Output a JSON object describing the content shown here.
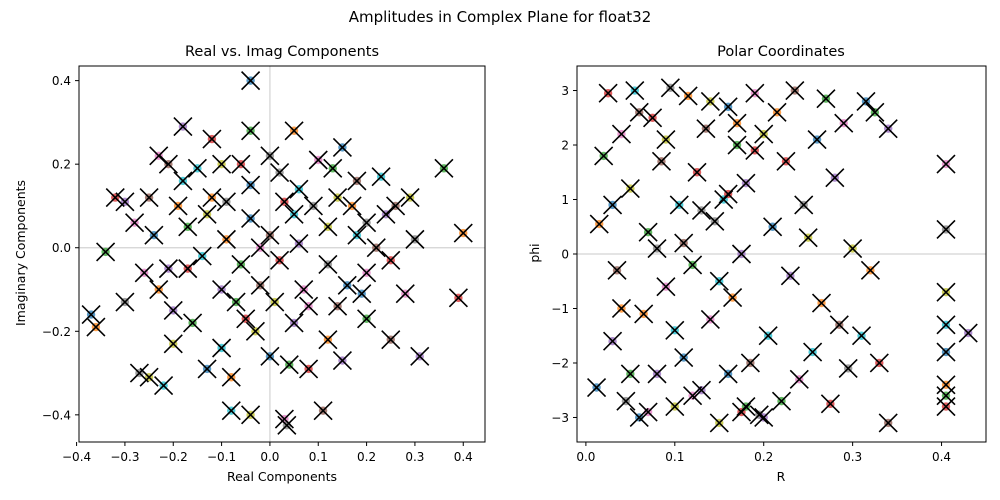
{
  "figure": {
    "title": "Amplitudes in Complex Plane for float32"
  },
  "colors": {
    "palette": [
      "#1f77b4",
      "#ff7f0e",
      "#2ca02c",
      "#d62728",
      "#9467bd",
      "#8c564b",
      "#e377c2",
      "#7f7f7f",
      "#bcbd22",
      "#17becf"
    ],
    "marker_x": "#000000",
    "zero_line": "#d3d3d3"
  },
  "chart_data": [
    {
      "type": "scatter",
      "title": "Real vs. Imag Components",
      "xlabel": "Real Components",
      "ylabel": "Imaginary Components",
      "xlim": [
        -0.395,
        0.445
      ],
      "ylim": [
        -0.465,
        0.435
      ],
      "xticks": [
        -0.4,
        -0.3,
        -0.2,
        -0.1,
        0.0,
        0.1,
        0.2,
        0.3,
        0.4
      ],
      "yticks": [
        -0.4,
        -0.2,
        0.0,
        0.2,
        0.4
      ],
      "xtick_labels": [
        "−0.4",
        "−0.3",
        "−0.2",
        "−0.1",
        "0.0",
        "0.1",
        "0.2",
        "0.3",
        "0.4"
      ],
      "ytick_labels": [
        "−0.4",
        "−0.2",
        "0.0",
        "0.2",
        "0.4"
      ],
      "reference_lines": {
        "x": 0,
        "y": 0
      },
      "markers": [
        "colored dot",
        "black x"
      ],
      "points": [
        [
          -0.04,
          0.4
        ],
        [
          0.4,
          0.035
        ],
        [
          0.36,
          0.19
        ],
        [
          0.39,
          -0.12
        ],
        [
          0.31,
          -0.26
        ],
        [
          0.11,
          -0.39
        ],
        [
          0.03,
          -0.41
        ],
        [
          0.035,
          -0.425
        ],
        [
          -0.04,
          -0.4
        ],
        [
          -0.08,
          -0.39
        ],
        [
          -0.37,
          -0.16
        ],
        [
          -0.36,
          -0.19
        ],
        [
          -0.34,
          -0.01
        ],
        [
          -0.32,
          0.12
        ],
        [
          -0.3,
          0.11
        ],
        [
          -0.25,
          0.12
        ],
        [
          -0.23,
          0.22
        ],
        [
          -0.27,
          -0.3
        ],
        [
          -0.25,
          -0.31
        ],
        [
          -0.22,
          -0.33
        ],
        [
          -0.13,
          -0.29
        ],
        [
          -0.08,
          -0.31
        ],
        [
          0.04,
          -0.28
        ],
        [
          0.08,
          -0.29
        ],
        [
          0.15,
          -0.27
        ],
        [
          0.25,
          -0.22
        ],
        [
          0.28,
          -0.11
        ],
        [
          0.3,
          0.02
        ],
        [
          0.29,
          0.12
        ],
        [
          0.23,
          0.17
        ],
        [
          0.15,
          0.24
        ],
        [
          0.05,
          0.28
        ],
        [
          -0.04,
          0.28
        ],
        [
          -0.12,
          0.26
        ],
        [
          -0.18,
          0.29
        ],
        [
          -0.21,
          0.2
        ],
        [
          -0.28,
          0.06
        ],
        [
          -0.3,
          -0.13
        ],
        [
          -0.2,
          -0.23
        ],
        [
          -0.1,
          -0.24
        ],
        [
          0.0,
          -0.26
        ],
        [
          0.12,
          -0.22
        ],
        [
          0.2,
          -0.17
        ],
        [
          0.25,
          -0.03
        ],
        [
          0.24,
          0.08
        ],
        [
          0.18,
          0.16
        ],
        [
          0.1,
          0.21
        ],
        [
          0.0,
          0.22
        ],
        [
          -0.1,
          0.2
        ],
        [
          -0.18,
          0.16
        ],
        [
          -0.24,
          0.03
        ],
        [
          -0.23,
          -0.1
        ],
        [
          -0.16,
          -0.18
        ],
        [
          -0.05,
          -0.17
        ],
        [
          0.05,
          -0.18
        ],
        [
          0.14,
          -0.14
        ],
        [
          0.2,
          -0.06
        ],
        [
          0.2,
          0.06
        ],
        [
          0.14,
          0.12
        ],
        [
          0.06,
          0.14
        ],
        [
          -0.04,
          0.15
        ],
        [
          -0.12,
          0.12
        ],
        [
          -0.17,
          0.05
        ],
        [
          -0.17,
          -0.05
        ],
        [
          -0.1,
          -0.1
        ],
        [
          -0.02,
          -0.09
        ],
        [
          0.07,
          -0.1
        ],
        [
          0.12,
          -0.04
        ],
        [
          0.12,
          0.05
        ],
        [
          0.05,
          0.08
        ],
        [
          -0.04,
          0.07
        ],
        [
          -0.09,
          0.02
        ],
        [
          -0.06,
          -0.04
        ],
        [
          0.02,
          -0.03
        ],
        [
          0.06,
          0.01
        ],
        [
          0.0,
          0.03
        ],
        [
          -0.02,
          0.0
        ],
        [
          0.09,
          0.1
        ],
        [
          -0.13,
          0.08
        ],
        [
          -0.14,
          -0.02
        ],
        [
          0.16,
          -0.09
        ],
        [
          0.17,
          0.1
        ],
        [
          -0.07,
          -0.13
        ],
        [
          0.03,
          0.11
        ],
        [
          -0.21,
          -0.05
        ],
        [
          0.22,
          0.0
        ],
        [
          0.08,
          -0.14
        ],
        [
          -0.09,
          0.11
        ],
        [
          0.01,
          -0.13
        ],
        [
          -0.15,
          0.19
        ],
        [
          0.19,
          -0.11
        ],
        [
          -0.19,
          0.1
        ],
        [
          0.13,
          0.19
        ],
        [
          -0.06,
          0.2
        ],
        [
          -0.2,
          -0.15
        ],
        [
          0.26,
          0.1
        ],
        [
          -0.26,
          -0.06
        ],
        [
          0.02,
          0.18
        ],
        [
          -0.03,
          -0.2
        ],
        [
          0.18,
          0.03
        ]
      ]
    },
    {
      "type": "scatter",
      "title": "Polar Coordinates",
      "xlabel": "R",
      "ylabel": "phi",
      "xlim": [
        -0.01,
        0.45
      ],
      "ylim": [
        -3.45,
        3.45
      ],
      "xticks": [
        0.0,
        0.1,
        0.2,
        0.3,
        0.4
      ],
      "yticks": [
        -3,
        -2,
        -1,
        0,
        1,
        2,
        3
      ],
      "xtick_labels": [
        "0.0",
        "0.1",
        "0.2",
        "0.3",
        "0.4"
      ],
      "ytick_labels": [
        "−3",
        "−2",
        "−1",
        "0",
        "1",
        "2",
        "3"
      ],
      "reference_lines": {
        "y": 0
      },
      "markers": [
        "colored dot",
        "black x"
      ],
      "points": [
        [
          0.012,
          -2.45
        ],
        [
          0.015,
          0.55
        ],
        [
          0.02,
          1.8
        ],
        [
          0.025,
          2.95
        ],
        [
          0.03,
          -1.6
        ],
        [
          0.035,
          -0.3
        ],
        [
          0.04,
          2.2
        ],
        [
          0.045,
          -2.7
        ],
        [
          0.05,
          1.2
        ],
        [
          0.055,
          3.0
        ],
        [
          0.06,
          -3.0
        ],
        [
          0.065,
          -1.1
        ],
        [
          0.07,
          0.4
        ],
        [
          0.075,
          2.5
        ],
        [
          0.08,
          -2.2
        ],
        [
          0.085,
          1.7
        ],
        [
          0.09,
          -0.6
        ],
        [
          0.095,
          3.05
        ],
        [
          0.1,
          -2.8
        ],
        [
          0.105,
          0.9
        ],
        [
          0.11,
          -1.9
        ],
        [
          0.115,
          2.9
        ],
        [
          0.12,
          -0.2
        ],
        [
          0.125,
          1.5
        ],
        [
          0.13,
          -2.5
        ],
        [
          0.135,
          2.3
        ],
        [
          0.14,
          -1.2
        ],
        [
          0.145,
          0.6
        ],
        [
          0.15,
          -3.1
        ],
        [
          0.155,
          1.0
        ],
        [
          0.16,
          2.7
        ],
        [
          0.165,
          -0.8
        ],
        [
          0.17,
          2.0
        ],
        [
          0.175,
          -2.9
        ],
        [
          0.18,
          1.3
        ],
        [
          0.185,
          -2.0
        ],
        [
          0.19,
          2.95
        ],
        [
          0.195,
          -2.95
        ],
        [
          0.2,
          2.2
        ],
        [
          0.205,
          -1.5
        ],
        [
          0.21,
          0.5
        ],
        [
          0.215,
          2.6
        ],
        [
          0.22,
          -2.7
        ],
        [
          0.225,
          1.7
        ],
        [
          0.23,
          -0.4
        ],
        [
          0.235,
          3.0
        ],
        [
          0.24,
          -2.3
        ],
        [
          0.245,
          0.9
        ],
        [
          0.25,
          0.3
        ],
        [
          0.255,
          -1.8
        ],
        [
          0.26,
          2.1
        ],
        [
          0.265,
          -0.9
        ],
        [
          0.27,
          2.85
        ],
        [
          0.275,
          -2.75
        ],
        [
          0.28,
          1.4
        ],
        [
          0.285,
          -1.3
        ],
        [
          0.29,
          2.4
        ],
        [
          0.295,
          -2.1
        ],
        [
          0.3,
          0.1
        ],
        [
          0.31,
          -1.5
        ],
        [
          0.315,
          2.8
        ],
        [
          0.32,
          -0.3
        ],
        [
          0.325,
          2.6
        ],
        [
          0.33,
          -2.0
        ],
        [
          0.34,
          2.3
        ],
        [
          0.34,
          -3.1
        ],
        [
          0.405,
          1.65
        ],
        [
          0.405,
          0.45
        ],
        [
          0.405,
          -0.7
        ],
        [
          0.405,
          -1.3
        ],
        [
          0.405,
          -1.8
        ],
        [
          0.405,
          -2.4
        ],
        [
          0.405,
          -2.6
        ],
        [
          0.405,
          -2.8
        ],
        [
          0.43,
          -1.45
        ],
        [
          0.11,
          0.2
        ],
        [
          0.12,
          -2.6
        ],
        [
          0.13,
          0.8
        ],
        [
          0.14,
          2.8
        ],
        [
          0.15,
          -0.5
        ],
        [
          0.16,
          -2.2
        ],
        [
          0.17,
          2.4
        ],
        [
          0.18,
          -2.8
        ],
        [
          0.19,
          1.9
        ],
        [
          0.2,
          -3.0
        ],
        [
          0.06,
          2.6
        ],
        [
          0.07,
          -2.9
        ],
        [
          0.08,
          0.1
        ],
        [
          0.09,
          2.1
        ],
        [
          0.1,
          -1.4
        ],
        [
          0.03,
          0.9
        ],
        [
          0.04,
          -1.0
        ],
        [
          0.05,
          -2.2
        ],
        [
          0.16,
          1.1
        ],
        [
          0.175,
          0.0
        ]
      ]
    }
  ]
}
